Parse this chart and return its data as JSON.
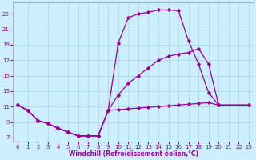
{
  "xlabel": "Windchill (Refroidissement éolien,°C)",
  "bg_color": "#cceeff",
  "grid_color": "#aadddd",
  "line_color": "#990099",
  "xlim": [
    -0.5,
    23.5
  ],
  "ylim": [
    6.5,
    24.5
  ],
  "xticks": [
    0,
    1,
    2,
    3,
    4,
    5,
    6,
    7,
    8,
    9,
    10,
    11,
    12,
    13,
    14,
    15,
    16,
    17,
    18,
    19,
    20,
    21,
    22,
    23
  ],
  "yticks": [
    7,
    9,
    11,
    13,
    15,
    17,
    19,
    21,
    23
  ],
  "line1_x": [
    0,
    1,
    2,
    3,
    4,
    5,
    6,
    7,
    8,
    9,
    10,
    11,
    12,
    13,
    14,
    15,
    16,
    17,
    18,
    19,
    20
  ],
  "line1_y": [
    11.2,
    10.5,
    9.2,
    8.8,
    8.2,
    7.7,
    7.2,
    7.2,
    7.2,
    10.5,
    19.2,
    22.5,
    23.0,
    23.2,
    23.5,
    23.5,
    23.4,
    19.5,
    16.5,
    12.8,
    11.2
  ],
  "line2_x": [
    0,
    1,
    2,
    3,
    4,
    5,
    6,
    7,
    8,
    9,
    10,
    11,
    12,
    13,
    14,
    15,
    16,
    17,
    18,
    19,
    20,
    23
  ],
  "line2_y": [
    11.2,
    10.5,
    9.2,
    8.8,
    8.2,
    7.7,
    7.2,
    7.2,
    7.2,
    10.5,
    12.5,
    14.0,
    15.0,
    16.0,
    17.0,
    17.5,
    17.8,
    18.0,
    18.5,
    16.5,
    11.2,
    11.2
  ],
  "line3_x": [
    0,
    1,
    2,
    3,
    4,
    5,
    6,
    7,
    8,
    9,
    10,
    11,
    12,
    13,
    14,
    15,
    16,
    17,
    18,
    19,
    20,
    23
  ],
  "line3_y": [
    11.2,
    10.5,
    9.2,
    8.8,
    8.2,
    7.7,
    7.2,
    7.2,
    7.2,
    10.5,
    10.6,
    10.7,
    10.8,
    10.9,
    11.0,
    11.1,
    11.2,
    11.3,
    11.4,
    11.5,
    11.2,
    11.2
  ]
}
